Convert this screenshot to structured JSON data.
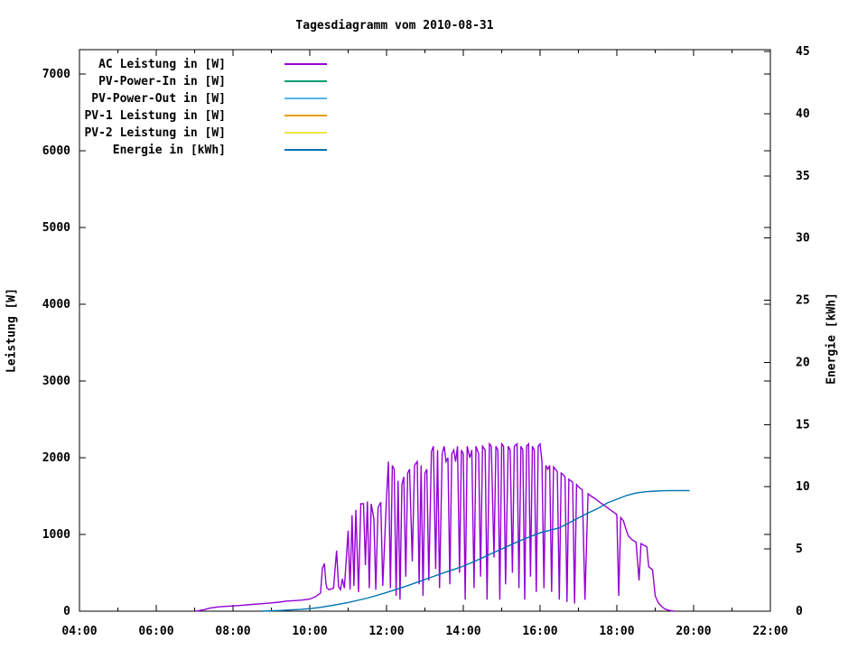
{
  "title": "Tagesdiagramm vom 2010-08-31",
  "axes": {
    "x": {
      "tick_labels": [
        "04:00",
        "06:00",
        "08:00",
        "10:00",
        "12:00",
        "14:00",
        "16:00",
        "18:00",
        "20:00",
        "22:00"
      ],
      "minor_tick_hours": [
        5,
        7,
        9,
        11,
        13,
        15,
        17,
        19,
        21
      ],
      "range_hours": [
        4,
        22
      ]
    },
    "y_left": {
      "label": "Leistung [W]",
      "tick_values": [
        0,
        1000,
        2000,
        3000,
        4000,
        5000,
        6000,
        7000
      ],
      "range": [
        0,
        7320
      ]
    },
    "y_right": {
      "label": "Energie [kWh]",
      "tick_values": [
        0,
        5,
        10,
        15,
        20,
        25,
        30,
        35,
        40,
        45
      ],
      "range": [
        0,
        45
      ]
    }
  },
  "chart_data": {
    "type": "line",
    "title": "Tagesdiagramm vom 2010-08-31",
    "xlabel": "",
    "x_unit": "time of day (decimal hours)",
    "xlim": [
      4,
      22
    ],
    "y_left_label": "Leistung [W]",
    "y_left_lim": [
      0,
      7320
    ],
    "y_right_label": "Energie [kWh]",
    "y_right_lim": [
      0,
      45
    ],
    "grid": false,
    "legend_position": "inside top-left",
    "background": "#ffffff",
    "axis_color": "#000000",
    "series": [
      {
        "name": "AC Leistung in [W]",
        "color": "#9400d3",
        "axis": "left",
        "points": [
          [
            7.0,
            0
          ],
          [
            7.1,
            5
          ],
          [
            7.25,
            20
          ],
          [
            7.4,
            40
          ],
          [
            7.6,
            55
          ],
          [
            7.8,
            62
          ],
          [
            8.0,
            68
          ],
          [
            8.25,
            78
          ],
          [
            8.5,
            88
          ],
          [
            8.75,
            98
          ],
          [
            9.0,
            108
          ],
          [
            9.2,
            118
          ],
          [
            9.4,
            132
          ],
          [
            9.6,
            138
          ],
          [
            9.8,
            145
          ],
          [
            10.0,
            158
          ],
          [
            10.15,
            190
          ],
          [
            10.28,
            235
          ],
          [
            10.33,
            560
          ],
          [
            10.38,
            620
          ],
          [
            10.42,
            360
          ],
          [
            10.45,
            300
          ],
          [
            10.5,
            280
          ],
          [
            10.62,
            300
          ],
          [
            10.7,
            790
          ],
          [
            10.75,
            320
          ],
          [
            10.8,
            280
          ],
          [
            10.85,
            420
          ],
          [
            10.9,
            300
          ],
          [
            11.0,
            1050
          ],
          [
            11.05,
            280
          ],
          [
            11.1,
            1250
          ],
          [
            11.15,
            330
          ],
          [
            11.2,
            1320
          ],
          [
            11.27,
            250
          ],
          [
            11.33,
            1400
          ],
          [
            11.4,
            1400
          ],
          [
            11.45,
            600
          ],
          [
            11.5,
            1430
          ],
          [
            11.55,
            300
          ],
          [
            11.6,
            1400
          ],
          [
            11.67,
            1200
          ],
          [
            11.72,
            280
          ],
          [
            11.78,
            1350
          ],
          [
            11.85,
            1420
          ],
          [
            11.9,
            330
          ],
          [
            12.0,
            1480
          ],
          [
            12.05,
            1950
          ],
          [
            12.1,
            300
          ],
          [
            12.15,
            1900
          ],
          [
            12.2,
            1850
          ],
          [
            12.25,
            200
          ],
          [
            12.3,
            1700
          ],
          [
            12.35,
            150
          ],
          [
            12.4,
            1650
          ],
          [
            12.45,
            1750
          ],
          [
            12.5,
            450
          ],
          [
            12.55,
            1800
          ],
          [
            12.6,
            1850
          ],
          [
            12.67,
            650
          ],
          [
            12.73,
            1900
          ],
          [
            12.8,
            1950
          ],
          [
            12.85,
            350
          ],
          [
            12.9,
            1900
          ],
          [
            12.95,
            200
          ],
          [
            13.0,
            1800
          ],
          [
            13.05,
            1850
          ],
          [
            13.1,
            400
          ],
          [
            13.17,
            2080
          ],
          [
            13.22,
            2150
          ],
          [
            13.28,
            550
          ],
          [
            13.33,
            2100
          ],
          [
            13.38,
            300
          ],
          [
            13.45,
            2050
          ],
          [
            13.5,
            2150
          ],
          [
            13.55,
            1950
          ],
          [
            13.6,
            2000
          ],
          [
            13.65,
            350
          ],
          [
            13.7,
            2050
          ],
          [
            13.75,
            2100
          ],
          [
            13.8,
            1950
          ],
          [
            13.85,
            2150
          ],
          [
            13.9,
            500
          ],
          [
            13.95,
            2100
          ],
          [
            14.0,
            2050
          ],
          [
            14.05,
            150
          ],
          [
            14.1,
            2150
          ],
          [
            14.17,
            2000
          ],
          [
            14.22,
            2100
          ],
          [
            14.28,
            300
          ],
          [
            14.33,
            2150
          ],
          [
            14.4,
            2050
          ],
          [
            14.45,
            450
          ],
          [
            14.5,
            2150
          ],
          [
            14.57,
            2100
          ],
          [
            14.62,
            150
          ],
          [
            14.68,
            2180
          ],
          [
            14.73,
            2150
          ],
          [
            14.8,
            700
          ],
          [
            14.85,
            2150
          ],
          [
            14.9,
            2100
          ],
          [
            14.95,
            150
          ],
          [
            15.0,
            2180
          ],
          [
            15.05,
            2150
          ],
          [
            15.1,
            350
          ],
          [
            15.17,
            2150
          ],
          [
            15.22,
            2100
          ],
          [
            15.28,
            500
          ],
          [
            15.33,
            2150
          ],
          [
            15.4,
            2180
          ],
          [
            15.45,
            300
          ],
          [
            15.5,
            2150
          ],
          [
            15.55,
            2100
          ],
          [
            15.6,
            150
          ],
          [
            15.65,
            2150
          ],
          [
            15.7,
            2180
          ],
          [
            15.75,
            450
          ],
          [
            15.8,
            2150
          ],
          [
            15.85,
            2100
          ],
          [
            15.9,
            250
          ],
          [
            15.95,
            2150
          ],
          [
            16.0,
            2180
          ],
          [
            16.05,
            1950
          ],
          [
            16.1,
            300
          ],
          [
            16.15,
            1900
          ],
          [
            16.2,
            1850
          ],
          [
            16.25,
            1900
          ],
          [
            16.3,
            250
          ],
          [
            16.35,
            1880
          ],
          [
            16.4,
            1850
          ],
          [
            16.45,
            1820
          ],
          [
            16.5,
            150
          ],
          [
            16.55,
            1800
          ],
          [
            16.6,
            1780
          ],
          [
            16.65,
            1750
          ],
          [
            16.7,
            120
          ],
          [
            16.75,
            1720
          ],
          [
            16.8,
            1700
          ],
          [
            16.85,
            1680
          ],
          [
            16.9,
            100
          ],
          [
            16.95,
            1650
          ],
          [
            17.0,
            1620
          ],
          [
            17.1,
            1580
          ],
          [
            17.17,
            150
          ],
          [
            17.25,
            1530
          ],
          [
            17.33,
            1500
          ],
          [
            17.42,
            1470
          ],
          [
            17.5,
            1440
          ],
          [
            17.58,
            1410
          ],
          [
            17.67,
            1380
          ],
          [
            17.75,
            1350
          ],
          [
            17.83,
            1320
          ],
          [
            17.92,
            1290
          ],
          [
            18.0,
            1260
          ],
          [
            18.05,
            200
          ],
          [
            18.1,
            1220
          ],
          [
            18.17,
            1180
          ],
          [
            18.25,
            1050
          ],
          [
            18.3,
            980
          ],
          [
            18.4,
            930
          ],
          [
            18.5,
            900
          ],
          [
            18.58,
            400
          ],
          [
            18.63,
            880
          ],
          [
            18.7,
            860
          ],
          [
            18.78,
            840
          ],
          [
            18.83,
            580
          ],
          [
            18.88,
            560
          ],
          [
            18.93,
            540
          ],
          [
            19.0,
            200
          ],
          [
            19.08,
            110
          ],
          [
            19.17,
            60
          ],
          [
            19.25,
            30
          ],
          [
            19.33,
            15
          ],
          [
            19.42,
            5
          ],
          [
            19.5,
            0
          ]
        ]
      },
      {
        "name": "PV-Power-In in [W]",
        "color": "#009e73",
        "axis": "left",
        "points": []
      },
      {
        "name": "PV-Power-Out in [W]",
        "color": "#56b4e9",
        "axis": "left",
        "points": []
      },
      {
        "name": "PV-1 Leistung in [W]",
        "color": "#e69f00",
        "axis": "left",
        "points": []
      },
      {
        "name": "PV-2 Leistung in [W]",
        "color": "#f0e442",
        "axis": "left",
        "points": []
      },
      {
        "name": "Energie in [kWh]",
        "color": "#0072b2",
        "axis": "right",
        "points": [
          [
            8.75,
            0
          ],
          [
            9.0,
            0.03
          ],
          [
            9.25,
            0.06
          ],
          [
            9.5,
            0.1
          ],
          [
            9.75,
            0.14
          ],
          [
            10.0,
            0.2
          ],
          [
            10.25,
            0.3
          ],
          [
            10.5,
            0.42
          ],
          [
            10.75,
            0.55
          ],
          [
            11.0,
            0.7
          ],
          [
            11.25,
            0.87
          ],
          [
            11.5,
            1.05
          ],
          [
            11.75,
            1.27
          ],
          [
            12.0,
            1.5
          ],
          [
            12.25,
            1.75
          ],
          [
            12.5,
            2.0
          ],
          [
            12.75,
            2.27
          ],
          [
            13.0,
            2.55
          ],
          [
            13.25,
            2.82
          ],
          [
            13.5,
            3.1
          ],
          [
            13.75,
            3.35
          ],
          [
            14.0,
            3.62
          ],
          [
            14.25,
            3.95
          ],
          [
            14.5,
            4.3
          ],
          [
            14.75,
            4.65
          ],
          [
            15.0,
            5.0
          ],
          [
            15.25,
            5.35
          ],
          [
            15.5,
            5.7
          ],
          [
            15.75,
            6.0
          ],
          [
            16.0,
            6.3
          ],
          [
            16.25,
            6.5
          ],
          [
            16.5,
            6.7
          ],
          [
            16.75,
            7.1
          ],
          [
            17.0,
            7.5
          ],
          [
            17.25,
            7.9
          ],
          [
            17.5,
            8.25
          ],
          [
            17.75,
            8.7
          ],
          [
            18.0,
            9.0
          ],
          [
            18.25,
            9.3
          ],
          [
            18.5,
            9.5
          ],
          [
            18.75,
            9.6
          ],
          [
            19.0,
            9.65
          ],
          [
            19.25,
            9.68
          ],
          [
            19.5,
            9.7
          ],
          [
            19.9,
            9.7
          ]
        ]
      }
    ]
  }
}
